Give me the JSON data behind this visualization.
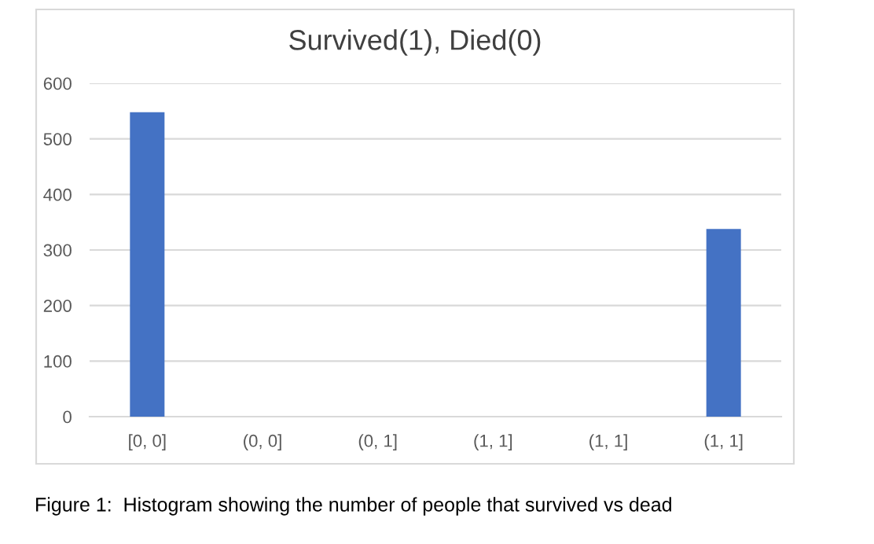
{
  "chart_data": {
    "type": "bar",
    "title": "Survived(1), Died(0)",
    "categories": [
      "[0, 0]",
      "(0, 0]",
      "(0, 1]",
      "(1, 1]",
      "(1, 1]",
      "(1, 1]"
    ],
    "values": [
      548,
      0,
      0,
      0,
      0,
      338
    ],
    "color": "#4472c4",
    "ylim": [
      0,
      600
    ],
    "yticks": [
      0,
      100,
      200,
      300,
      400,
      500,
      600
    ],
    "grid": "y",
    "legend": false,
    "annotations": [
      "Figure 1:  Histogram showing the number of people that survived vs dead"
    ]
  }
}
